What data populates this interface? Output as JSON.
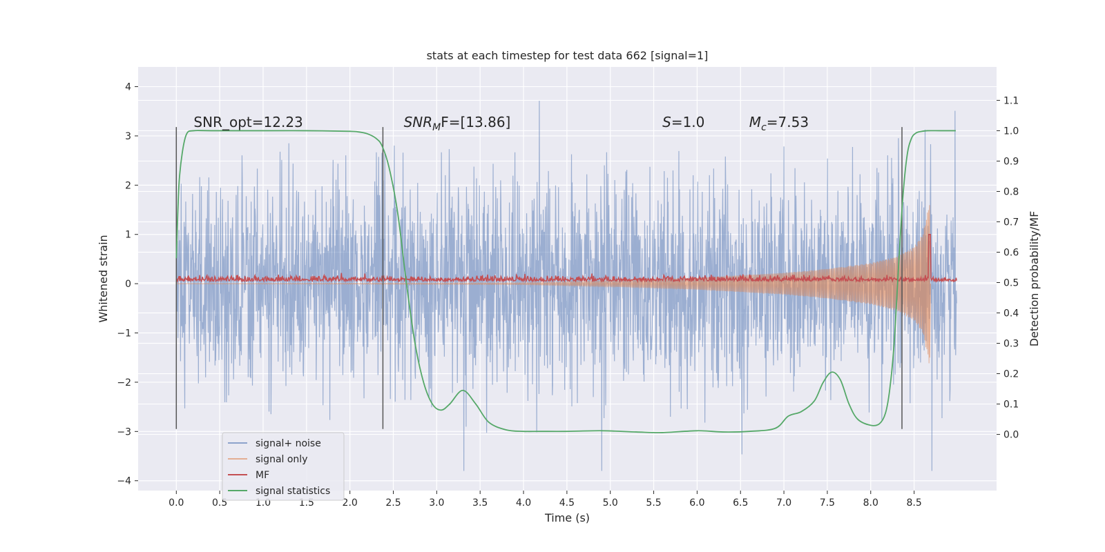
{
  "chart_data": {
    "type": "line",
    "title": "stats at each timestep for test data 662 [signal=1]",
    "xlabel": "Time (s)",
    "ylabel": "Whitened strain",
    "y2label": "Detection probability/MF",
    "xlim": [
      -0.44,
      9.45
    ],
    "ylim": [
      -4.2,
      4.4
    ],
    "y2lim": [
      -0.185,
      1.21
    ],
    "x_ticks": [
      0.0,
      0.5,
      1.0,
      1.5,
      2.0,
      2.5,
      3.0,
      3.5,
      4.0,
      4.5,
      5.0,
      5.5,
      6.0,
      6.5,
      7.0,
      7.5,
      8.0,
      8.5
    ],
    "x_tick_labels": [
      "0.0",
      "0.5",
      "1.0",
      "1.5",
      "2.0",
      "2.5",
      "3.0",
      "3.5",
      "4.0",
      "4.5",
      "5.0",
      "5.5",
      "6.0",
      "6.5",
      "7.0",
      "7.5",
      "8.0",
      "8.5"
    ],
    "y_ticks": [
      -4,
      -3,
      -2,
      -1,
      0,
      1,
      2,
      3,
      4
    ],
    "y_tick_labels": [
      "−4",
      "−3",
      "−2",
      "−1",
      "0",
      "1",
      "2",
      "3",
      "4"
    ],
    "y2_ticks": [
      0.0,
      0.1,
      0.2,
      0.3,
      0.4,
      0.5,
      0.6,
      0.7,
      0.8,
      0.9,
      1.0,
      1.1
    ],
    "y2_tick_labels": [
      "0.0",
      "0.1",
      "0.2",
      "0.3",
      "0.4",
      "0.5",
      "0.6",
      "0.7",
      "0.8",
      "0.9",
      "1.0",
      "1.1"
    ],
    "grid": true,
    "legend_position": "bottom-left",
    "colors": {
      "background": "#eaeaf2",
      "signal_noise": "#4c72b0",
      "signal_only": "#dd8452",
      "mf": "#c44e52",
      "statistics": "#55a868",
      "marker": "#555555"
    },
    "series": [
      {
        "name": "signal+ noise",
        "axis": "left",
        "description_level": {
          "t_start": 0.0,
          "t_end": 8.99,
          "typical_abs_max": 2.2,
          "peak_min": -3.8,
          "peak_max": 4.0
        }
      },
      {
        "name": "signal only",
        "axis": "left",
        "envelope": {
          "t": [
            0.0,
            4.0,
            5.0,
            6.0,
            7.0,
            7.5,
            8.0,
            8.3,
            8.5,
            8.6,
            8.66,
            8.68
          ],
          "amp": [
            0.0,
            0.02,
            0.06,
            0.12,
            0.22,
            0.3,
            0.42,
            0.55,
            0.75,
            1.0,
            1.5,
            1.7
          ]
        }
      },
      {
        "name": "MF",
        "axis": "left",
        "baseline": 0.07,
        "noise_amplitude": 0.09,
        "peak": {
          "t": 8.68,
          "value": 1.0
        }
      },
      {
        "name": "signal statistics",
        "axis": "right",
        "x": [
          0.0,
          0.03,
          0.07,
          0.12,
          0.2,
          0.4,
          1.0,
          1.5,
          2.0,
          2.1,
          2.2,
          2.3,
          2.37,
          2.45,
          2.55,
          2.65,
          2.75,
          2.85,
          2.95,
          3.05,
          3.15,
          3.3,
          3.45,
          3.6,
          3.8,
          4.0,
          4.2,
          4.5,
          4.9,
          5.3,
          5.6,
          6.0,
          6.3,
          6.6,
          6.9,
          7.05,
          7.2,
          7.35,
          7.45,
          7.55,
          7.65,
          7.75,
          7.85,
          8.0,
          8.1,
          8.17,
          8.22,
          8.27,
          8.32,
          8.37,
          8.42,
          8.47,
          8.52,
          8.57,
          8.65,
          8.8,
          8.98
        ],
        "values": [
          0.58,
          0.82,
          0.93,
          0.99,
          1.0,
          1.0,
          1.0,
          1.0,
          0.998,
          0.996,
          0.99,
          0.975,
          0.95,
          0.88,
          0.73,
          0.5,
          0.3,
          0.17,
          0.1,
          0.08,
          0.1,
          0.145,
          0.1,
          0.04,
          0.015,
          0.01,
          0.01,
          0.01,
          0.012,
          0.008,
          0.006,
          0.012,
          0.008,
          0.01,
          0.02,
          0.06,
          0.075,
          0.11,
          0.17,
          0.205,
          0.18,
          0.1,
          0.05,
          0.03,
          0.035,
          0.07,
          0.15,
          0.3,
          0.55,
          0.78,
          0.92,
          0.975,
          0.992,
          0.997,
          1.0,
          1.0,
          1.0
        ]
      }
    ],
    "markers": {
      "label": "",
      "x": [
        0.0,
        2.38,
        8.36
      ],
      "y_range": [
        -2.95,
        3.18
      ]
    },
    "annotations": [
      {
        "text": "SNR_opt=12.23",
        "x": 0.2,
        "y": 3.18,
        "italic": false
      },
      {
        "text_main": "SNR",
        "text_sub": "M",
        "text_rest": "F=[13.86]",
        "x": 2.62,
        "y": 3.18,
        "italic": true
      },
      {
        "text_main": "S",
        "text_rest": "=1.0",
        "x": 5.6,
        "y": 3.18,
        "italic": true
      },
      {
        "text_main": "M",
        "text_sub": "c",
        "text_rest": "=7.53",
        "x": 6.6,
        "y": 3.18,
        "italic": true
      }
    ]
  }
}
